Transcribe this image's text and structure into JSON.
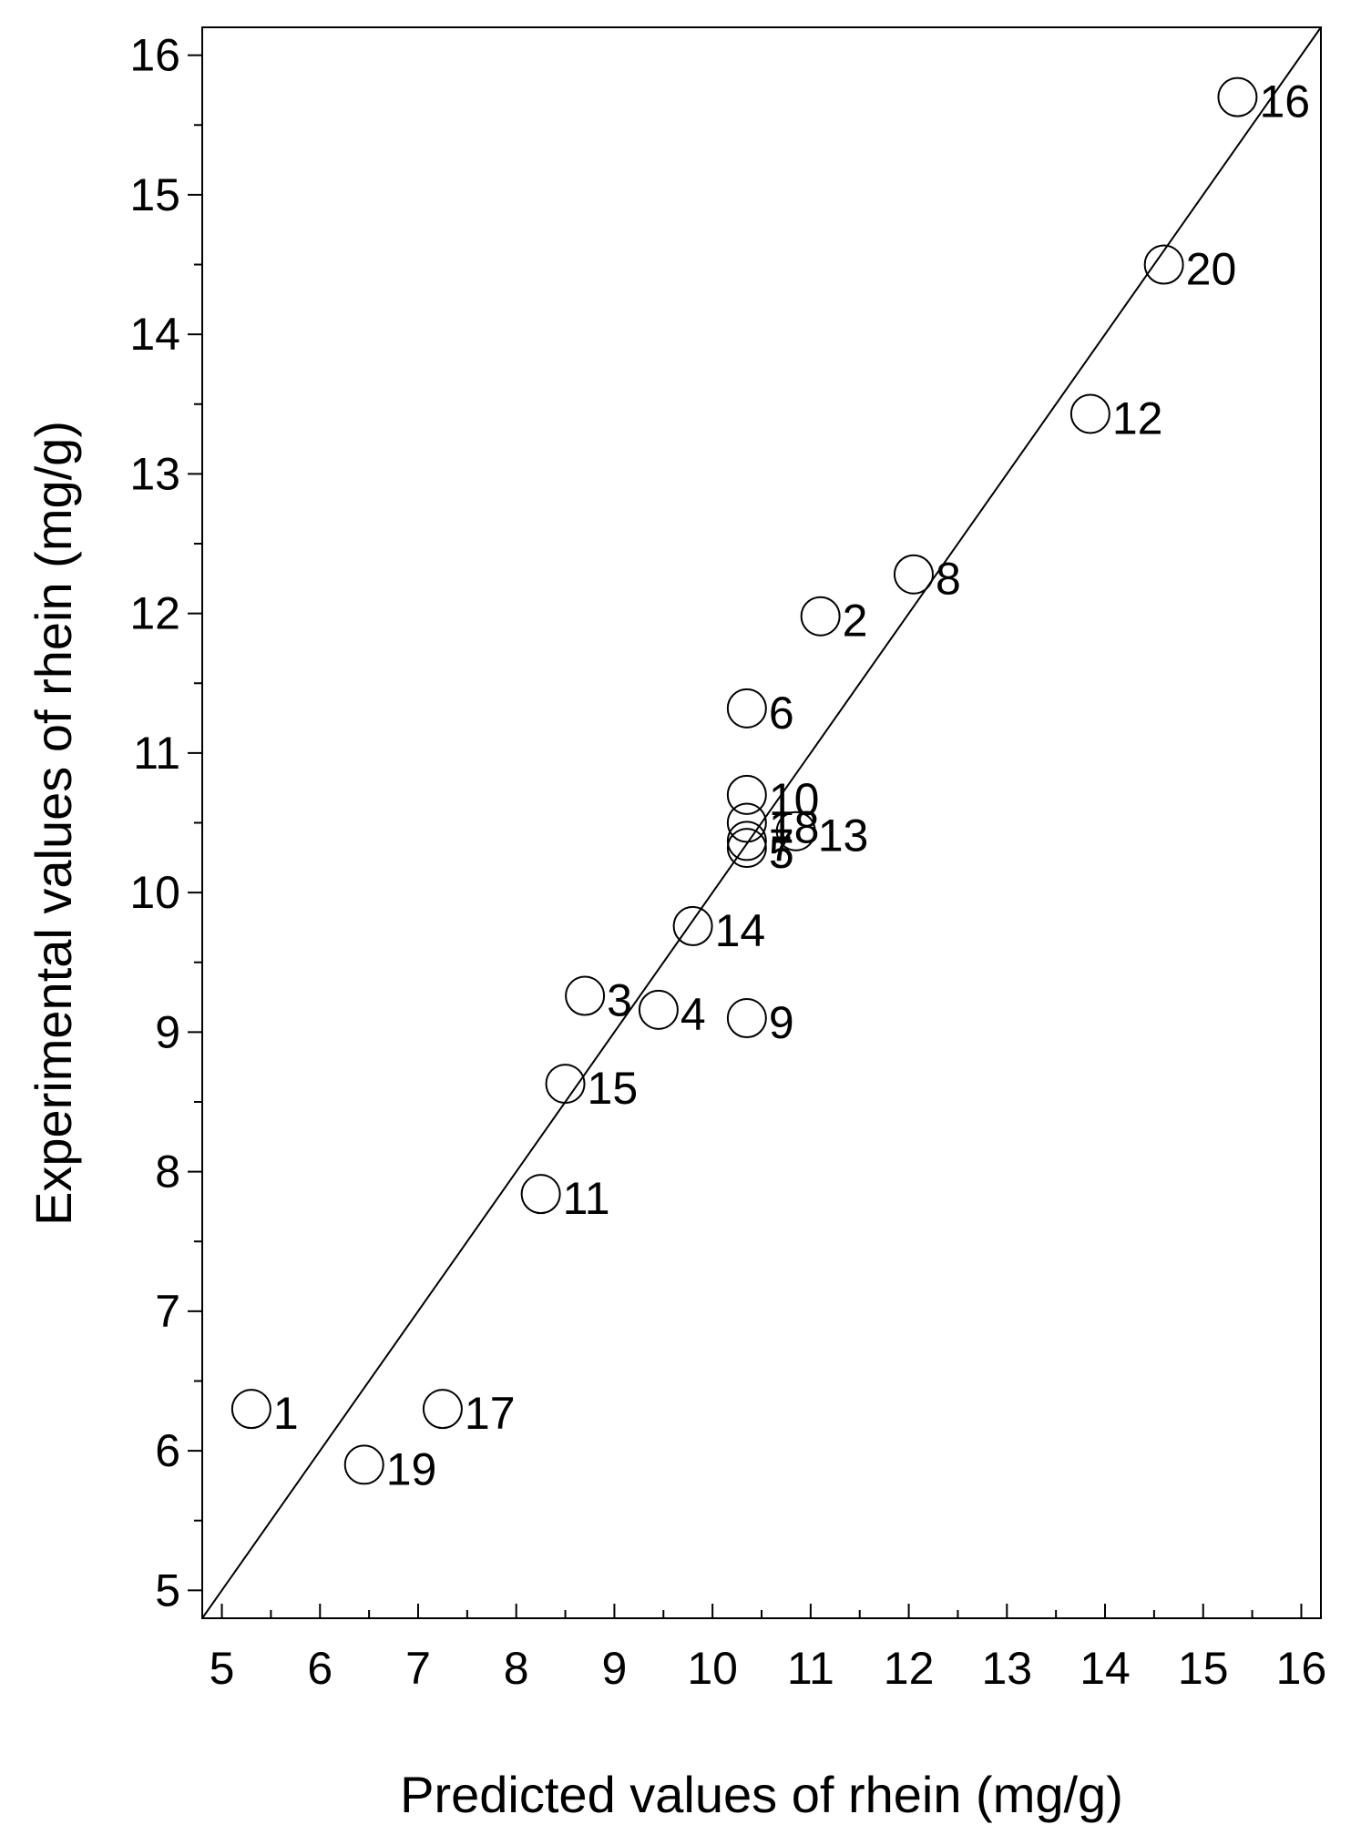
{
  "chart_data": {
    "type": "scatter",
    "title": "",
    "xlabel": "Predicted values of rhein (mg/g)",
    "ylabel": "Experimental values of rhein (mg/g)",
    "xlim": [
      4.8,
      16.2
    ],
    "ylim": [
      4.8,
      16.2
    ],
    "x_ticks": [
      5,
      6,
      7,
      8,
      9,
      10,
      11,
      12,
      13,
      14,
      15,
      16
    ],
    "y_ticks": [
      5,
      6,
      7,
      8,
      9,
      10,
      11,
      12,
      13,
      14,
      15,
      16
    ],
    "grid": false,
    "reference_line": "y = x",
    "marker": "open-circle",
    "points": [
      {
        "label": "1",
        "x": 5.3,
        "y": 6.3
      },
      {
        "label": "2",
        "x": 11.1,
        "y": 11.98
      },
      {
        "label": "3",
        "x": 8.7,
        "y": 9.26
      },
      {
        "label": "4",
        "x": 9.45,
        "y": 9.16
      },
      {
        "label": "5",
        "x": 10.35,
        "y": 10.32
      },
      {
        "label": "6",
        "x": 10.35,
        "y": 11.32
      },
      {
        "label": "7",
        "x": 10.35,
        "y": 10.37
      },
      {
        "label": "8",
        "x": 12.05,
        "y": 12.28
      },
      {
        "label": "9",
        "x": 10.35,
        "y": 9.1
      },
      {
        "label": "10",
        "x": 10.35,
        "y": 10.7
      },
      {
        "label": "11",
        "x": 8.25,
        "y": 7.84
      },
      {
        "label": "12",
        "x": 13.85,
        "y": 13.43
      },
      {
        "label": "13",
        "x": 10.85,
        "y": 10.44
      },
      {
        "label": "14",
        "x": 9.8,
        "y": 9.76
      },
      {
        "label": "15",
        "x": 8.5,
        "y": 8.63
      },
      {
        "label": "16",
        "x": 15.35,
        "y": 15.7
      },
      {
        "label": "17",
        "x": 7.25,
        "y": 6.3
      },
      {
        "label": "18",
        "x": 10.35,
        "y": 10.5
      },
      {
        "label": "19",
        "x": 6.45,
        "y": 5.9
      },
      {
        "label": "20",
        "x": 14.6,
        "y": 14.5
      }
    ]
  }
}
